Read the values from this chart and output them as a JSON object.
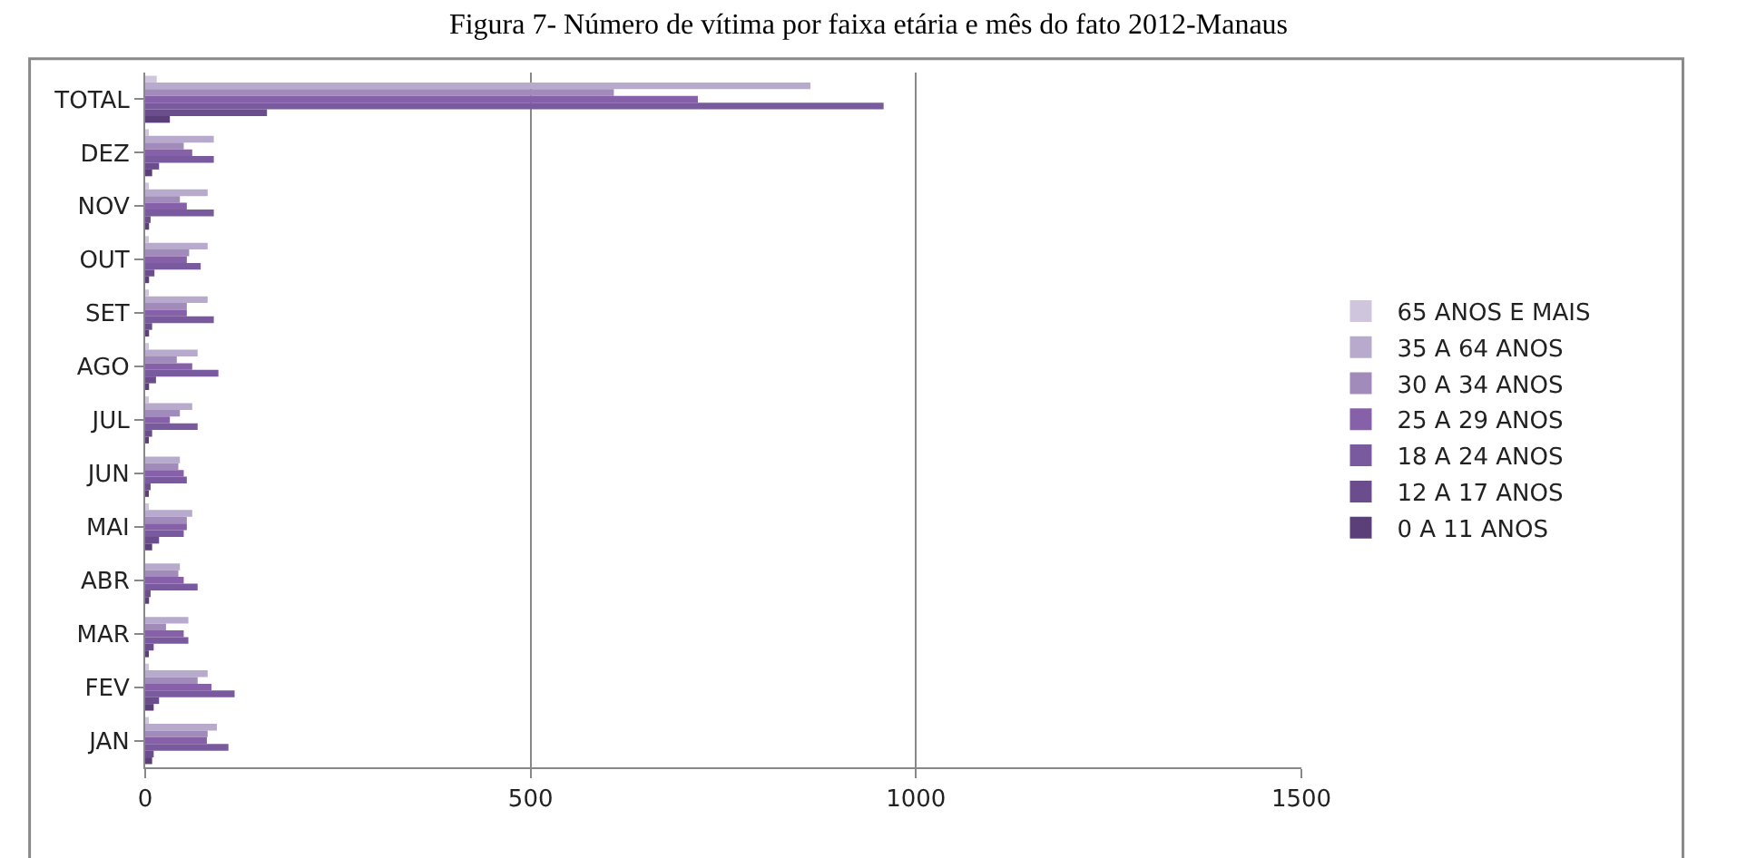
{
  "chart_data": {
    "type": "bar",
    "orientation": "horizontal",
    "title": "Figura 7- Número de vítima por faixa etária e mês do fato 2012-Manaus",
    "categories": [
      "TOTAL",
      "DEZ",
      "NOV",
      "OUT",
      "SET",
      "AGO",
      "JUL",
      "JUN",
      "MAI",
      "ABR",
      "MAR",
      "FEV",
      "JAN"
    ],
    "series": [
      {
        "name": "65 ANOS E MAIS",
        "color": "#cfc6dd",
        "values": [
          15,
          3,
          3,
          3,
          3,
          3,
          3,
          null,
          3,
          null,
          null,
          3,
          3
        ]
      },
      {
        "name": "35 A 64 ANOS",
        "color": "#b8aacc",
        "values": [
          863,
          89,
          81,
          81,
          81,
          68,
          61,
          45,
          61,
          45,
          56,
          81,
          93
        ]
      },
      {
        "name": "30 A 34 ANOS",
        "color": "#a08bbb",
        "values": [
          608,
          50,
          45,
          57,
          54,
          41,
          45,
          43,
          54,
          43,
          27,
          68,
          81
        ]
      },
      {
        "name": "25 A 29 ANOS",
        "color": "#8660a8",
        "values": [
          717,
          61,
          54,
          54,
          54,
          61,
          32,
          50,
          54,
          50,
          50,
          86,
          80
        ]
      },
      {
        "name": "18 A 24 ANOS",
        "color": "#7a5a9e",
        "values": [
          958,
          89,
          89,
          72,
          89,
          95,
          68,
          54,
          50,
          68,
          56,
          116,
          108
        ]
      },
      {
        "name": "12 A 17 ANOS",
        "color": "#6b4d8e",
        "values": [
          158,
          18,
          7,
          12,
          9,
          14,
          9,
          7,
          18,
          7,
          11,
          18,
          11
        ]
      },
      {
        "name": "0 A 11 ANOS",
        "color": "#5a3f78",
        "values": [
          32,
          9,
          5,
          5,
          5,
          5,
          4,
          4,
          9,
          5,
          4,
          11,
          9
        ]
      }
    ],
    "xlim": [
      0,
      1500
    ],
    "xticks": [
      0,
      500,
      1000,
      1500
    ],
    "grid": "x",
    "legend": "right"
  }
}
